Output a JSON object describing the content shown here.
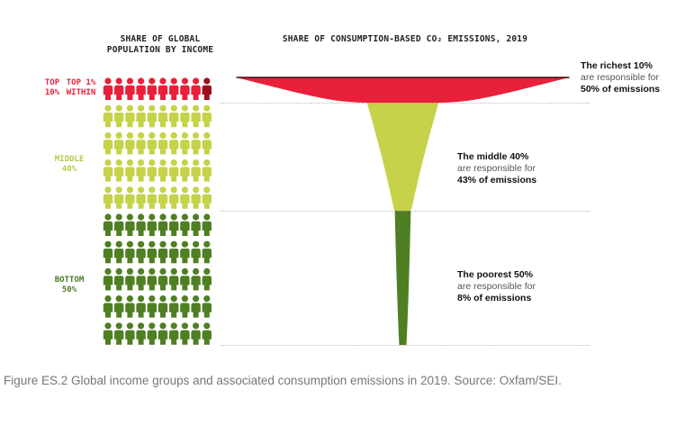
{
  "chart_data": {
    "type": "funnel",
    "population_header": [
      "SHARE OF GLOBAL",
      "POPULATION BY INCOME"
    ],
    "emissions_header": "SHARE OF CONSUMPTION-BASED CO₂ EMISSIONS, 2019",
    "groups": [
      {
        "name": "Top 10%",
        "label_lines": [
          "TOP",
          "10%"
        ],
        "population_share": 10,
        "emission_share": 50,
        "color": "#e8203a",
        "annotation": [
          "The richest 10%",
          "are responsible for",
          "50% of emissions"
        ]
      },
      {
        "name": "Middle 40%",
        "label_lines": [
          "MIDDLE",
          "40%"
        ],
        "population_share": 40,
        "emission_share": 43,
        "color": "#c5d24a",
        "annotation": [
          "The middle 40%",
          "are responsible for",
          "43% of emissions"
        ]
      },
      {
        "name": "Bottom 50%",
        "label_lines": [
          "BOTTOM",
          "50%"
        ],
        "population_share": 50,
        "emission_share": 8,
        "color": "#4f7f23",
        "annotation": [
          "The poorest 50%",
          "are responsible for",
          "8% of emissions"
        ]
      }
    ],
    "top1_label_lines": [
      "TOP 1%",
      "WITHIN"
    ],
    "top1_color": "#9b1020",
    "icon_grid": {
      "rows": 10,
      "cols": 10
    }
  },
  "caption": "Figure ES.2 Global income groups and associated consumption emissions in 2019. Source: Oxfam/SEI."
}
